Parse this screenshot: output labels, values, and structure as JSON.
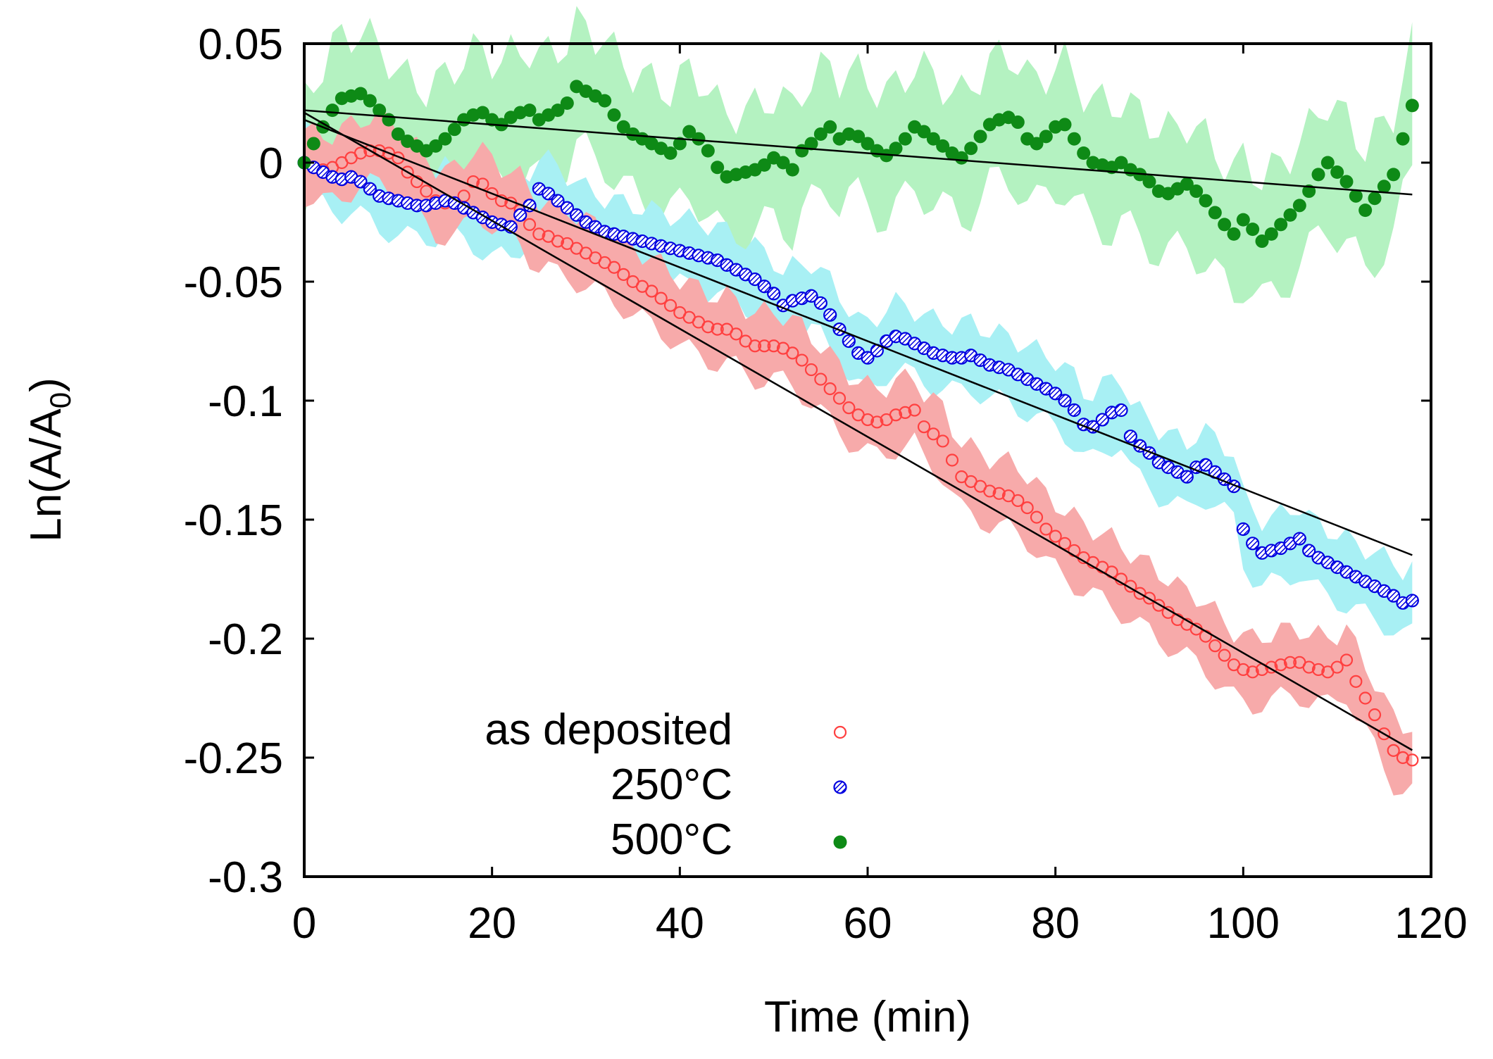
{
  "chart_data": {
    "type": "scatter",
    "xlabel": "Time (min)",
    "ylabel_main": "Ln(A/A",
    "ylabel_sub": "0",
    "ylabel_close": ")",
    "xlim": [
      0,
      120
    ],
    "ylim": [
      -0.3,
      0.05
    ],
    "x_ticks": [
      0,
      20,
      40,
      60,
      80,
      100,
      120
    ],
    "x_tick_labels": [
      "0",
      "20",
      "40",
      "60",
      "80",
      "100",
      "120"
    ],
    "y_ticks": [
      0.05,
      0,
      -0.05,
      -0.1,
      -0.15,
      -0.2,
      -0.25,
      -0.3
    ],
    "y_tick_labels": [
      "0.05",
      "0",
      "-0.05",
      "-0.1",
      "-0.15",
      "-0.2",
      "-0.25",
      "-0.3"
    ],
    "legend_position": "bottom-left",
    "x": [
      0,
      1,
      2,
      3,
      4,
      5,
      6,
      7,
      8,
      9,
      10,
      11,
      12,
      13,
      14,
      15,
      16,
      17,
      18,
      19,
      20,
      21,
      22,
      23,
      24,
      25,
      26,
      27,
      28,
      29,
      30,
      31,
      32,
      33,
      34,
      35,
      36,
      37,
      38,
      39,
      40,
      41,
      42,
      43,
      44,
      45,
      46,
      47,
      48,
      49,
      50,
      51,
      52,
      53,
      54,
      55,
      56,
      57,
      58,
      59,
      60,
      61,
      62,
      63,
      64,
      65,
      66,
      67,
      68,
      69,
      70,
      71,
      72,
      73,
      74,
      75,
      76,
      77,
      78,
      79,
      80,
      81,
      82,
      83,
      84,
      85,
      86,
      87,
      88,
      89,
      90,
      91,
      92,
      93,
      94,
      95,
      96,
      97,
      98,
      99,
      100,
      101,
      102,
      103,
      104,
      105,
      106,
      107,
      108,
      109,
      110,
      111,
      112,
      113,
      114,
      115,
      116,
      117,
      118
    ],
    "series": [
      {
        "name": "as deposited",
        "color": "#ff4040",
        "band_color": "#f7aaaa",
        "marker": "open-circle",
        "fit": {
          "slope": -0.00227,
          "intercept": 0.021
        },
        "values": [
          0.0,
          -0.002,
          -0.003,
          -0.002,
          0.0,
          0.002,
          0.004,
          0.005,
          0.005,
          0.004,
          0.002,
          -0.004,
          -0.008,
          -0.012,
          -0.016,
          -0.017,
          -0.017,
          -0.014,
          -0.008,
          -0.009,
          -0.013,
          -0.016,
          -0.017,
          -0.02,
          -0.026,
          -0.03,
          -0.031,
          -0.033,
          -0.034,
          -0.036,
          -0.038,
          -0.04,
          -0.042,
          -0.044,
          -0.047,
          -0.05,
          -0.052,
          -0.054,
          -0.057,
          -0.06,
          -0.063,
          -0.065,
          -0.067,
          -0.069,
          -0.07,
          -0.07,
          -0.072,
          -0.075,
          -0.077,
          -0.077,
          -0.077,
          -0.078,
          -0.08,
          -0.083,
          -0.087,
          -0.091,
          -0.095,
          -0.099,
          -0.103,
          -0.106,
          -0.108,
          -0.109,
          -0.108,
          -0.106,
          -0.105,
          -0.104,
          -0.111,
          -0.114,
          -0.117,
          -0.125,
          -0.132,
          -0.134,
          -0.136,
          -0.138,
          -0.139,
          -0.14,
          -0.142,
          -0.145,
          -0.149,
          -0.154,
          -0.157,
          -0.16,
          -0.163,
          -0.166,
          -0.168,
          -0.17,
          -0.172,
          -0.175,
          -0.178,
          -0.181,
          -0.183,
          -0.186,
          -0.189,
          -0.192,
          -0.194,
          -0.196,
          -0.199,
          -0.203,
          -0.207,
          -0.211,
          -0.213,
          -0.214,
          -0.213,
          -0.212,
          -0.211,
          -0.21,
          -0.21,
          -0.212,
          -0.213,
          -0.214,
          -0.212,
          -0.209,
          -0.218,
          -0.225,
          -0.232,
          -0.24,
          -0.247,
          -0.25,
          -0.251
        ]
      },
      {
        "name": "250°C",
        "color": "#0000e0",
        "band_color": "#a8f0f4",
        "marker": "hatched-circle",
        "fit": {
          "slope": -0.00155,
          "intercept": 0.018
        },
        "values": [
          0.0,
          -0.002,
          -0.004,
          -0.006,
          -0.007,
          -0.006,
          -0.008,
          -0.011,
          -0.014,
          -0.015,
          -0.016,
          -0.017,
          -0.018,
          -0.018,
          -0.017,
          -0.016,
          -0.017,
          -0.019,
          -0.021,
          -0.023,
          -0.025,
          -0.026,
          -0.027,
          -0.022,
          -0.018,
          -0.011,
          -0.013,
          -0.016,
          -0.019,
          -0.022,
          -0.025,
          -0.027,
          -0.029,
          -0.03,
          -0.031,
          -0.032,
          -0.033,
          -0.034,
          -0.035,
          -0.036,
          -0.037,
          -0.038,
          -0.039,
          -0.04,
          -0.041,
          -0.043,
          -0.045,
          -0.047,
          -0.049,
          -0.052,
          -0.055,
          -0.06,
          -0.058,
          -0.057,
          -0.056,
          -0.059,
          -0.064,
          -0.07,
          -0.075,
          -0.08,
          -0.082,
          -0.079,
          -0.075,
          -0.073,
          -0.074,
          -0.076,
          -0.078,
          -0.08,
          -0.081,
          -0.082,
          -0.082,
          -0.081,
          -0.083,
          -0.085,
          -0.086,
          -0.087,
          -0.089,
          -0.091,
          -0.093,
          -0.095,
          -0.097,
          -0.1,
          -0.104,
          -0.11,
          -0.111,
          -0.108,
          -0.105,
          -0.104,
          -0.115,
          -0.119,
          -0.122,
          -0.126,
          -0.128,
          -0.13,
          -0.132,
          -0.128,
          -0.127,
          -0.13,
          -0.133,
          -0.136,
          -0.154,
          -0.16,
          -0.164,
          -0.163,
          -0.162,
          -0.16,
          -0.158,
          -0.163,
          -0.166,
          -0.168,
          -0.17,
          -0.172,
          -0.174,
          -0.176,
          -0.178,
          -0.18,
          -0.182,
          -0.185,
          -0.184
        ]
      },
      {
        "name": "500°C",
        "color": "#0e8a16",
        "band_color": "#b4f2c1",
        "marker": "filled-circle",
        "fit": {
          "slope": -0.0003,
          "intercept": 0.022
        },
        "values": [
          0.0,
          0.008,
          0.015,
          0.022,
          0.027,
          0.028,
          0.029,
          0.026,
          0.022,
          0.018,
          0.012,
          0.009,
          0.007,
          0.005,
          0.007,
          0.01,
          0.014,
          0.018,
          0.02,
          0.021,
          0.018,
          0.016,
          0.019,
          0.021,
          0.022,
          0.018,
          0.02,
          0.022,
          0.025,
          0.032,
          0.03,
          0.028,
          0.026,
          0.02,
          0.015,
          0.012,
          0.01,
          0.008,
          0.006,
          0.004,
          0.008,
          0.013,
          0.01,
          0.005,
          -0.002,
          -0.006,
          -0.005,
          -0.004,
          -0.003,
          -0.001,
          0.002,
          0.0,
          -0.003,
          0.005,
          0.008,
          0.012,
          0.015,
          0.01,
          0.012,
          0.011,
          0.008,
          0.005,
          0.003,
          0.006,
          0.01,
          0.015,
          0.013,
          0.01,
          0.007,
          0.004,
          0.002,
          0.006,
          0.011,
          0.016,
          0.018,
          0.019,
          0.017,
          0.01,
          0.008,
          0.011,
          0.015,
          0.016,
          0.01,
          0.004,
          0.0,
          -0.001,
          -0.002,
          0.0,
          -0.003,
          -0.005,
          -0.008,
          -0.012,
          -0.013,
          -0.011,
          -0.009,
          -0.012,
          -0.016,
          -0.021,
          -0.026,
          -0.03,
          -0.024,
          -0.028,
          -0.033,
          -0.03,
          -0.026,
          -0.022,
          -0.018,
          -0.012,
          -0.005,
          0.0,
          -0.004,
          -0.008,
          -0.014,
          -0.02,
          -0.015,
          -0.01,
          -0.005,
          0.01,
          0.024
        ]
      }
    ]
  }
}
